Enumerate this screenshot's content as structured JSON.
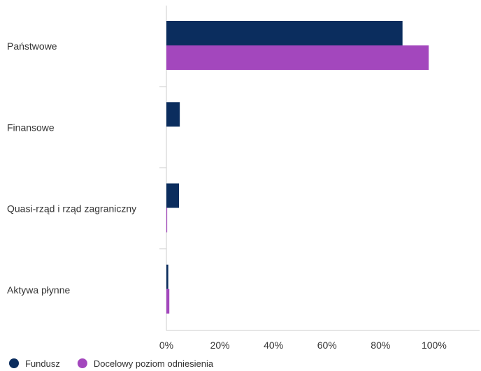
{
  "chart_data": {
    "type": "bar",
    "orientation": "horizontal",
    "categories": [
      "Państwowe",
      "Finansowe",
      "Quasi-rząd i rząd zagraniczny",
      "Aktywa płynne"
    ],
    "series": [
      {
        "name": "Fundusz",
        "color": "#0b2d5e",
        "values": [
          88.2,
          5.0,
          4.7,
          0.7
        ]
      },
      {
        "name": "Docelowy poziom odniesienia",
        "color": "#a347bd",
        "values": [
          98.0,
          0.0,
          0.3,
          1.1
        ]
      }
    ],
    "xlim": [
      0,
      117
    ],
    "xticks": [
      0,
      20,
      40,
      60,
      80,
      100
    ],
    "xtick_labels": [
      "0%",
      "20%",
      "40%",
      "60%",
      "80%",
      "100%"
    ],
    "grid": false,
    "legend_position": "bottom-left"
  }
}
